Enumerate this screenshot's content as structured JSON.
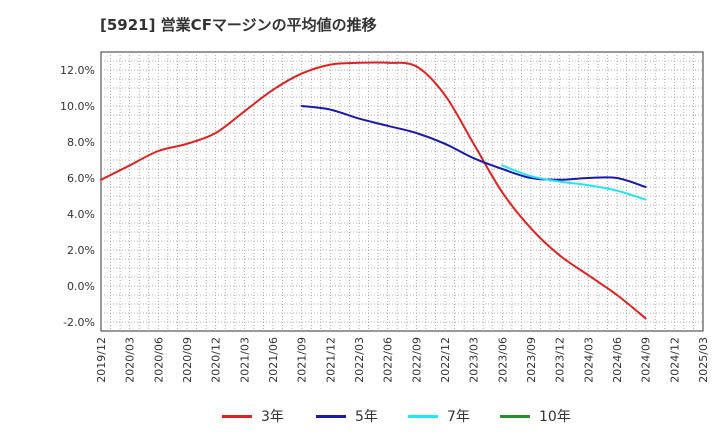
{
  "chart_data": {
    "type": "line",
    "title": "[5921]  営業CFマージンの平均値の推移",
    "xlabel": "",
    "ylabel": "",
    "x_ticks": [
      "2019/12",
      "2020/03",
      "2020/06",
      "2020/09",
      "2020/12",
      "2021/03",
      "2021/06",
      "2021/09",
      "2021/12",
      "2022/03",
      "2022/06",
      "2022/09",
      "2022/12",
      "2023/03",
      "2023/06",
      "2023/09",
      "2023/12",
      "2024/03",
      "2024/06",
      "2024/09",
      "2024/12",
      "2025/03"
    ],
    "y_ticks": [
      "-2.0%",
      "0.0%",
      "2.0%",
      "4.0%",
      "6.0%",
      "8.0%",
      "10.0%",
      "12.0%"
    ],
    "ylim": [
      -2.5,
      13.0
    ],
    "y_unit": "%",
    "grid": true,
    "legend_position": "bottom",
    "series": [
      {
        "name": "3年",
        "color": "#dd2222",
        "points": [
          [
            "2019/12",
            5.9
          ],
          [
            "2020/03",
            6.7
          ],
          [
            "2020/06",
            7.5
          ],
          [
            "2020/09",
            7.9
          ],
          [
            "2020/12",
            8.5
          ],
          [
            "2021/03",
            9.7
          ],
          [
            "2021/06",
            10.9
          ],
          [
            "2021/09",
            11.8
          ],
          [
            "2021/12",
            12.3
          ],
          [
            "2022/03",
            12.4
          ],
          [
            "2022/06",
            12.4
          ],
          [
            "2022/09",
            12.2
          ],
          [
            "2022/12",
            10.6
          ],
          [
            "2023/03",
            7.9
          ],
          [
            "2023/06",
            5.2
          ],
          [
            "2023/09",
            3.2
          ],
          [
            "2023/12",
            1.7
          ],
          [
            "2024/03",
            0.6
          ],
          [
            "2024/06",
            -0.5
          ],
          [
            "2024/09",
            -1.8
          ]
        ]
      },
      {
        "name": "5年",
        "color": "#1a1aaa",
        "points": [
          [
            "2021/09",
            10.0
          ],
          [
            "2021/12",
            9.8
          ],
          [
            "2022/03",
            9.3
          ],
          [
            "2022/06",
            8.9
          ],
          [
            "2022/09",
            8.5
          ],
          [
            "2022/12",
            7.9
          ],
          [
            "2023/03",
            7.1
          ],
          [
            "2023/06",
            6.5
          ],
          [
            "2023/09",
            6.0
          ],
          [
            "2023/12",
            5.9
          ],
          [
            "2024/03",
            6.0
          ],
          [
            "2024/06",
            6.0
          ],
          [
            "2024/09",
            5.5
          ]
        ]
      },
      {
        "name": "7年",
        "color": "#22e5f0",
        "points": [
          [
            "2023/06",
            6.7
          ],
          [
            "2023/09",
            6.1
          ],
          [
            "2023/12",
            5.8
          ],
          [
            "2024/03",
            5.6
          ],
          [
            "2024/06",
            5.3
          ],
          [
            "2024/09",
            4.8
          ]
        ]
      },
      {
        "name": "10年",
        "color": "#2e8b2e",
        "points": []
      }
    ]
  }
}
